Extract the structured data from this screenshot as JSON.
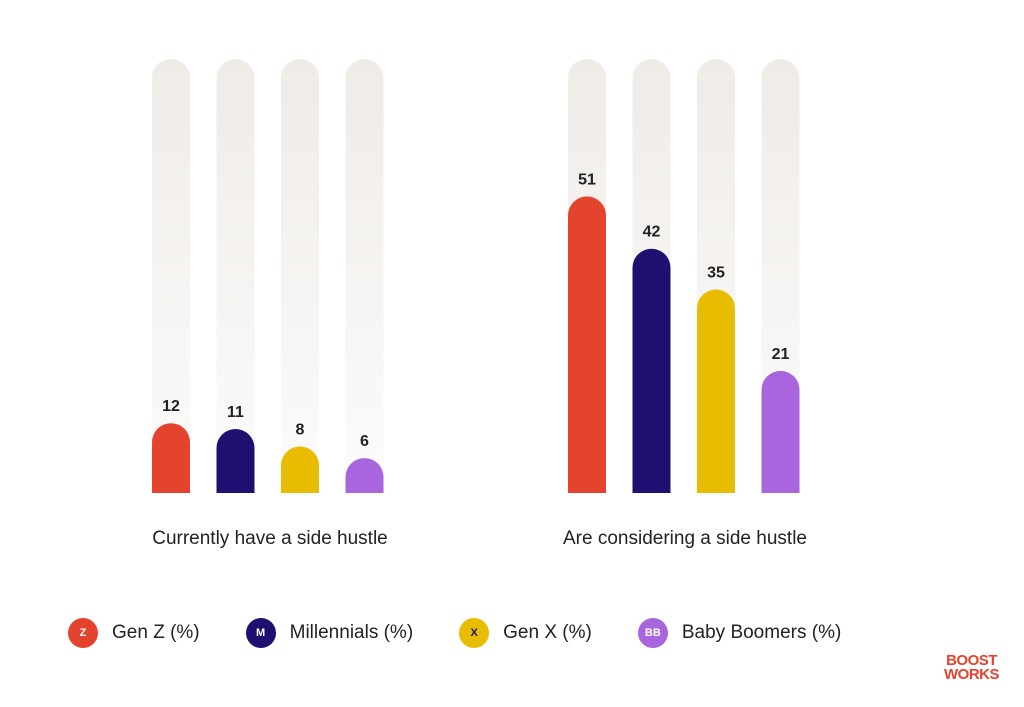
{
  "chart_data": {
    "type": "bar",
    "ylim": [
      0,
      100
    ],
    "groups": [
      {
        "label": "Currently have a side hustle",
        "values": [
          12,
          11,
          8,
          6
        ]
      },
      {
        "label": "Are considering a side hustle",
        "values": [
          51,
          42,
          35,
          21
        ]
      }
    ],
    "series": [
      {
        "name": "Gen Z (%)",
        "badge": "Z",
        "color": "#E4432D",
        "badge_text_color": "#ffffff"
      },
      {
        "name": "Millennials (%)",
        "badge": "M",
        "color": "#1E1070",
        "badge_text_color": "#ffffff"
      },
      {
        "name": "Gen X (%)",
        "badge": "X",
        "color": "#E8BC00",
        "badge_text_color": "#1E1070"
      },
      {
        "name": "Baby Boomers (%)",
        "badge": "BB",
        "color": "#A865DD",
        "badge_text_color": "#ffffff"
      }
    ],
    "track_color": "#EFEBE7"
  },
  "logo": {
    "line1": "BOOST",
    "line2": "WORKS",
    "color": "#E4432D"
  }
}
